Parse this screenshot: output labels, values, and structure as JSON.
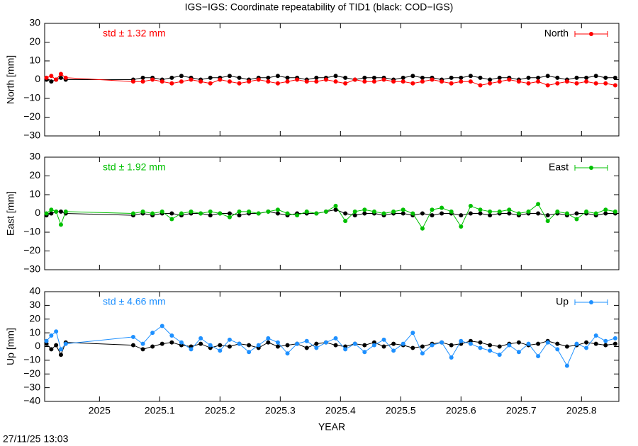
{
  "title": "IGS−IGS: Coordinate repeatability of TID1 (black: COD−IGS)",
  "footer": "27/11/25 13:03",
  "chart_data": [
    {
      "type": "line",
      "ylabel": "North [mm]",
      "annotation": "std ± 1.32 mm",
      "legend": "upper right",
      "grid": false,
      "xlim": [
        2024.909,
        2025.862
      ],
      "xticks": [
        2025,
        2025.1,
        2025.2,
        2025.3,
        2025.4,
        2025.5,
        2025.6,
        2025.7,
        2025.8
      ],
      "ylim": [
        -30,
        30
      ],
      "yticks": [
        {
          "value": -30,
          "label": "−30"
        },
        {
          "value": -20,
          "label": "−20"
        },
        {
          "value": -10,
          "label": "−10"
        },
        0,
        10,
        20,
        30
      ],
      "x": [
        2024.912,
        2024.92,
        2024.928,
        2024.936,
        2024.944,
        2025.056,
        2025.072,
        2025.088,
        2025.104,
        2025.12,
        2025.136,
        2025.152,
        2025.168,
        2025.184,
        2025.2,
        2025.216,
        2025.232,
        2025.248,
        2025.264,
        2025.28,
        2025.296,
        2025.312,
        2025.328,
        2025.344,
        2025.36,
        2025.376,
        2025.392,
        2025.408,
        2025.424,
        2025.44,
        2025.456,
        2025.472,
        2025.488,
        2025.504,
        2025.52,
        2025.536,
        2025.552,
        2025.568,
        2025.584,
        2025.6,
        2025.616,
        2025.632,
        2025.648,
        2025.664,
        2025.68,
        2025.696,
        2025.712,
        2025.728,
        2025.744,
        2025.76,
        2025.776,
        2025.792,
        2025.808,
        2025.824,
        2025.84,
        2025.856
      ],
      "series": [
        {
          "color": "#000000",
          "values": [
            0,
            -1,
            0,
            1,
            0,
            0,
            1,
            1,
            0,
            1,
            2,
            1,
            0,
            1,
            1,
            2,
            1,
            0,
            1,
            1,
            2,
            1,
            1,
            0,
            1,
            1,
            2,
            1,
            0,
            1,
            1,
            1,
            0,
            1,
            2,
            1,
            1,
            0,
            1,
            1,
            2,
            1,
            0,
            1,
            1,
            0,
            1,
            1,
            2,
            1,
            0,
            1,
            1,
            2,
            1,
            1
          ]
        },
        {
          "name": "North",
          "color": "#ff0000",
          "values": [
            1,
            2,
            0,
            3,
            1,
            -1,
            -1,
            0,
            -1,
            -2,
            -1,
            0,
            -1,
            -2,
            0,
            -1,
            -2,
            -1,
            0,
            -1,
            -2,
            -1,
            0,
            -1,
            -1,
            0,
            -1,
            -2,
            0,
            -1,
            -1,
            0,
            -1,
            -1,
            -2,
            -1,
            0,
            -1,
            -2,
            -1,
            -1,
            -3,
            -2,
            -1,
            0,
            -1,
            -2,
            -1,
            -3,
            -2,
            -1,
            -2,
            -1,
            -2,
            -2,
            -3
          ]
        }
      ]
    },
    {
      "type": "line",
      "ylabel": "East [mm]",
      "annotation": "std ± 1.92 mm",
      "legend": "upper right",
      "grid": false,
      "xlim": [
        2024.909,
        2025.862
      ],
      "xticks": [
        2025,
        2025.1,
        2025.2,
        2025.3,
        2025.4,
        2025.5,
        2025.6,
        2025.7,
        2025.8
      ],
      "ylim": [
        -30,
        30
      ],
      "yticks": [
        {
          "value": -30,
          "label": "−30"
        },
        {
          "value": -20,
          "label": "−20"
        },
        {
          "value": -10,
          "label": "−10"
        },
        0,
        10,
        20,
        30
      ],
      "x": [
        2024.912,
        2024.92,
        2024.928,
        2024.936,
        2024.944,
        2025.056,
        2025.072,
        2025.088,
        2025.104,
        2025.12,
        2025.136,
        2025.152,
        2025.168,
        2025.184,
        2025.2,
        2025.216,
        2025.232,
        2025.248,
        2025.264,
        2025.28,
        2025.296,
        2025.312,
        2025.328,
        2025.344,
        2025.36,
        2025.376,
        2025.392,
        2025.408,
        2025.424,
        2025.44,
        2025.456,
        2025.472,
        2025.488,
        2025.504,
        2025.52,
        2025.536,
        2025.552,
        2025.568,
        2025.584,
        2025.6,
        2025.616,
        2025.632,
        2025.648,
        2025.664,
        2025.68,
        2025.696,
        2025.712,
        2025.728,
        2025.744,
        2025.76,
        2025.776,
        2025.792,
        2025.808,
        2025.824,
        2025.84,
        2025.856
      ],
      "series": [
        {
          "color": "#000000",
          "values": [
            -1,
            0,
            1,
            1,
            0,
            -1,
            0,
            -1,
            0,
            0,
            -1,
            0,
            0,
            -1,
            0,
            0,
            -1,
            0,
            0,
            1,
            0,
            -1,
            0,
            0,
            0,
            1,
            2,
            0,
            -1,
            0,
            0,
            -1,
            0,
            0,
            -1,
            0,
            -1,
            0,
            0,
            -1,
            0,
            0,
            -1,
            0,
            0,
            -1,
            0,
            0,
            -1,
            0,
            -1,
            0,
            0,
            -1,
            0,
            0
          ]
        },
        {
          "name": "East",
          "color": "#00c000",
          "values": [
            0,
            2,
            1,
            -6,
            1,
            0,
            1,
            0,
            1,
            -3,
            0,
            1,
            0,
            1,
            0,
            -2,
            1,
            1,
            0,
            1,
            2,
            0,
            -1,
            1,
            0,
            1,
            4,
            -4,
            1,
            2,
            1,
            0,
            1,
            2,
            0,
            -8,
            2,
            3,
            1,
            -7,
            4,
            2,
            1,
            1,
            2,
            0,
            1,
            5,
            -4,
            1,
            0,
            -3,
            1,
            0,
            2,
            1
          ]
        }
      ]
    },
    {
      "type": "line",
      "ylabel": "Up [mm]",
      "annotation": "std ± 4.66 mm",
      "legend": "upper right",
      "grid": false,
      "xlabel": "YEAR",
      "xlim": [
        2024.909,
        2025.862
      ],
      "xticks": [
        2025,
        2025.1,
        2025.2,
        2025.3,
        2025.4,
        2025.5,
        2025.6,
        2025.7,
        2025.8
      ],
      "ylim": [
        -40,
        40
      ],
      "yticks": [
        {
          "value": -40,
          "label": "−40"
        },
        {
          "value": -30,
          "label": "−30"
        },
        {
          "value": -20,
          "label": "−20"
        },
        {
          "value": -10,
          "label": "−10"
        },
        0,
        10,
        20,
        30,
        40
      ],
      "x": [
        2024.912,
        2024.92,
        2024.928,
        2024.936,
        2024.944,
        2025.056,
        2025.072,
        2025.088,
        2025.104,
        2025.12,
        2025.136,
        2025.152,
        2025.168,
        2025.184,
        2025.2,
        2025.216,
        2025.232,
        2025.248,
        2025.264,
        2025.28,
        2025.296,
        2025.312,
        2025.328,
        2025.344,
        2025.36,
        2025.376,
        2025.392,
        2025.408,
        2025.424,
        2025.44,
        2025.456,
        2025.472,
        2025.488,
        2025.504,
        2025.52,
        2025.536,
        2025.552,
        2025.568,
        2025.584,
        2025.6,
        2025.616,
        2025.632,
        2025.648,
        2025.664,
        2025.68,
        2025.696,
        2025.712,
        2025.728,
        2025.744,
        2025.76,
        2025.776,
        2025.792,
        2025.808,
        2025.824,
        2025.84,
        2025.856
      ],
      "series": [
        {
          "color": "#000000",
          "values": [
            2,
            -2,
            1,
            -6,
            3,
            1,
            -2,
            0,
            2,
            3,
            1,
            0,
            2,
            -1,
            1,
            0,
            2,
            1,
            -1,
            3,
            0,
            1,
            2,
            -1,
            2,
            3,
            1,
            0,
            2,
            1,
            3,
            0,
            2,
            1,
            -1,
            0,
            2,
            3,
            1,
            2,
            4,
            3,
            1,
            0,
            2,
            3,
            1,
            2,
            4,
            2,
            0,
            1,
            3,
            2,
            1,
            2
          ]
        },
        {
          "name": "Up",
          "color": "#1e90ff",
          "values": [
            4,
            8,
            11,
            -2,
            2,
            7,
            2,
            10,
            15,
            8,
            3,
            -2,
            6,
            1,
            -3,
            5,
            2,
            -4,
            1,
            6,
            3,
            -5,
            2,
            4,
            -1,
            3,
            6,
            -2,
            2,
            -4,
            1,
            5,
            -3,
            2,
            10,
            -5,
            1,
            3,
            -8,
            4,
            2,
            -1,
            -3,
            -6,
            1,
            -4,
            2,
            -7,
            3,
            -2,
            -14,
            2,
            -1,
            8,
            4,
            6
          ]
        }
      ]
    }
  ]
}
